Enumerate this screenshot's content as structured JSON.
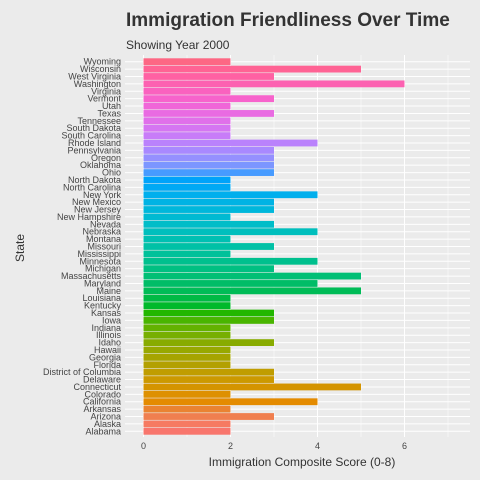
{
  "header": {
    "title": "Immigration Friendliness Over Time",
    "subtitle": "Showing Year 2000"
  },
  "chart_data": {
    "type": "bar",
    "orientation": "horizontal",
    "title": "Immigration Friendliness Over Time",
    "subtitle": "Showing Year 2000",
    "xlabel": "Immigration Composite Score (0-8)",
    "ylabel": "State",
    "xlim": [
      0,
      7.4
    ],
    "xticks": [
      0,
      2,
      4,
      6
    ],
    "grid": true,
    "legend": "none",
    "categories": [
      "Alabama",
      "Alaska",
      "Arizona",
      "Arkansas",
      "California",
      "Colorado",
      "Connecticut",
      "Delaware",
      "District of Columbia",
      "Florida",
      "Georgia",
      "Hawaii",
      "Idaho",
      "Illinois",
      "Indiana",
      "Iowa",
      "Kansas",
      "Kentucky",
      "Louisiana",
      "Maine",
      "Maryland",
      "Massachusetts",
      "Michigan",
      "Minnesota",
      "Mississippi",
      "Missouri",
      "Montana",
      "Nebraska",
      "Nevada",
      "New Hampshire",
      "New Jersey",
      "New Mexico",
      "New York",
      "North Carolina",
      "North Dakota",
      "Ohio",
      "Oklahoma",
      "Oregon",
      "Pennsylvania",
      "Rhode Island",
      "South Carolina",
      "South Dakota",
      "Tennessee",
      "Texas",
      "Utah",
      "Vermont",
      "Virginia",
      "Washington",
      "West Virginia",
      "Wisconsin",
      "Wyoming"
    ],
    "values": [
      2,
      2,
      3,
      2,
      4,
      2,
      5,
      3,
      3,
      2,
      2,
      2,
      3,
      2,
      2,
      3,
      3,
      2,
      2,
      5,
      4,
      5,
      3,
      4,
      2,
      3,
      2,
      4,
      3,
      2,
      3,
      3,
      4,
      2,
      2,
      3,
      3,
      3,
      3,
      4,
      2,
      2,
      2,
      3,
      2,
      3,
      2,
      6,
      3,
      5,
      2
    ],
    "colors": [
      "#F8766D",
      "#F67A62",
      "#F07F4F",
      "#EA8331",
      "#E48B00",
      "#DE9000",
      "#D49400",
      "#CC9900",
      "#C09D00",
      "#B3A000",
      "#A6A400",
      "#98A800",
      "#88AB00",
      "#77AF00",
      "#63B200",
      "#49B500",
      "#22B700",
      "#00B92B",
      "#00BA45",
      "#00BC57",
      "#00BD67",
      "#00BF75",
      "#00C082",
      "#00C08E",
      "#00C19A",
      "#00C1A6",
      "#00C0B2",
      "#00BFBD",
      "#00BDC8",
      "#00BAD2",
      "#00B7DB",
      "#00B3E4",
      "#00AFED",
      "#00A9F4",
      "#00A3FA",
      "#479BFF",
      "#7C96FF",
      "#9590FF",
      "#A989FF",
      "#BA82FC",
      "#C87CF8",
      "#D575F2",
      "#E070EA",
      "#E96BE2",
      "#F066D8",
      "#F763CC",
      "#FA62BF",
      "#FC61B1",
      "#FF61A3",
      "#FF6394",
      "#FD6784"
    ]
  }
}
